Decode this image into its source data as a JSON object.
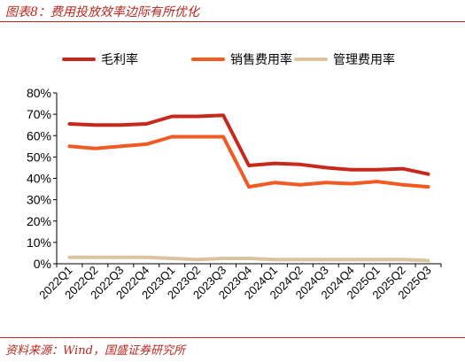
{
  "header": {
    "title": "图表8：费用投放效率边际有所优化"
  },
  "footer": {
    "source": "资料来源：Wind，国盛证券研究所"
  },
  "chart_data": {
    "type": "line",
    "categories": [
      "2022Q1",
      "2022Q2",
      "2022Q3",
      "2022Q4",
      "2023Q1",
      "2023Q2",
      "2023Q3",
      "2023Q4",
      "2024Q1",
      "2024Q2",
      "2024Q3",
      "2024Q4",
      "2025Q1",
      "2025Q2",
      "2025Q3"
    ],
    "series": [
      {
        "name": "毛利率",
        "color": "#c8281b",
        "values": [
          65.5,
          65.0,
          65.0,
          65.5,
          69.0,
          69.0,
          69.5,
          46.0,
          47.0,
          46.5,
          45.0,
          44.0,
          44.0,
          44.5,
          42.0
        ]
      },
      {
        "name": "销售费用率",
        "color": "#f15a22",
        "values": [
          55.0,
          54.0,
          55.0,
          56.0,
          59.5,
          59.5,
          59.5,
          36.0,
          38.0,
          37.0,
          38.0,
          37.5,
          38.5,
          37.0,
          36.0
        ]
      },
      {
        "name": "管理费用率",
        "color": "#d9c3a0",
        "values": [
          3.0,
          3.0,
          3.0,
          3.0,
          2.5,
          2.0,
          2.5,
          2.5,
          2.0,
          2.0,
          2.0,
          2.0,
          2.0,
          2.0,
          1.5
        ]
      }
    ],
    "y_ticks": [
      "0%",
      "10%",
      "20%",
      "30%",
      "40%",
      "50%",
      "60%",
      "70%",
      "80%"
    ],
    "ylim": [
      0,
      80
    ],
    "xlabel": "",
    "ylabel": "",
    "grid": false,
    "legend_position": "top"
  }
}
